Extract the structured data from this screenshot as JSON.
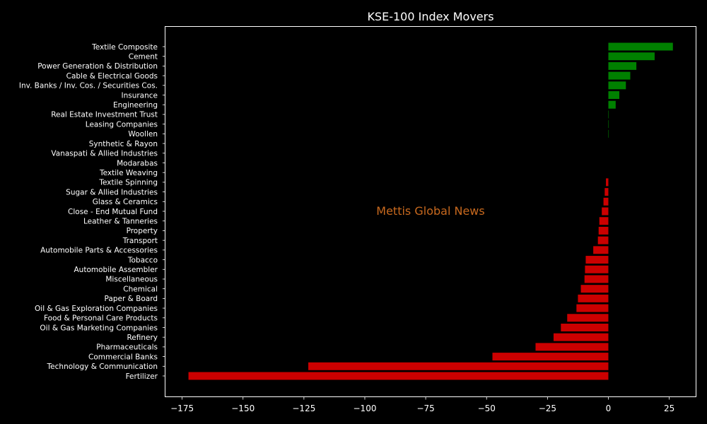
{
  "chart_data": {
    "type": "bar",
    "orientation": "horizontal",
    "title": "KSE-100 Index Movers",
    "watermark": "Mettis Global News",
    "xlim": [
      -182,
      36
    ],
    "xticks": [
      {
        "value": -175,
        "label": "−175"
      },
      {
        "value": -150,
        "label": "−150"
      },
      {
        "value": -125,
        "label": "−125"
      },
      {
        "value": -100,
        "label": "−100"
      },
      {
        "value": -75,
        "label": "−75"
      },
      {
        "value": -50,
        "label": "−50"
      },
      {
        "value": -25,
        "label": "−25"
      },
      {
        "value": 0,
        "label": "0"
      },
      {
        "value": 25,
        "label": "25"
      }
    ],
    "colors": {
      "positive": "#008000",
      "negative": "#cc0000",
      "background": "#000000",
      "foreground": "#ffffff"
    },
    "categories": [
      "Textile Composite",
      "Cement",
      "Power Generation & Distribution",
      "Cable & Electrical Goods",
      "Inv. Banks / Inv. Cos. / Securities Cos.",
      "Insurance",
      "Engineering",
      "Real Estate Investment Trust",
      "Leasing Companies",
      "Woollen",
      "Synthetic & Rayon",
      "Vanaspati & Allied Industries",
      "Modarabas",
      "Textile Weaving",
      "Textile Spinning",
      "Sugar & Allied Industries",
      "Glass & Ceramics",
      "Close - End Mutual Fund",
      "Leather & Tanneries",
      "Property",
      "Transport",
      "Automobile Parts & Accessories",
      "Tobacco",
      "Automobile Assembler",
      "Miscellaneous",
      "Chemical",
      "Paper & Board",
      "Oil & Gas Exploration Companies",
      "Food & Personal Care Products",
      "Oil & Gas Marketing Companies",
      "Refinery",
      "Pharmaceuticals",
      "Commercial Banks",
      "Technology & Communication",
      "Fertilizer"
    ],
    "values": [
      26.5,
      19.0,
      11.5,
      9.0,
      7.2,
      4.5,
      3.0,
      0.15,
      0.1,
      0.1,
      0.0,
      0.0,
      0.0,
      0.0,
      -1.0,
      -1.5,
      -2.0,
      -2.7,
      -3.7,
      -4.0,
      -4.3,
      -6.2,
      -9.3,
      -9.6,
      -9.8,
      -11.3,
      -12.5,
      -13.1,
      -16.9,
      -19.5,
      -22.5,
      -29.9,
      -47.6,
      -123.2,
      -172.4
    ]
  }
}
